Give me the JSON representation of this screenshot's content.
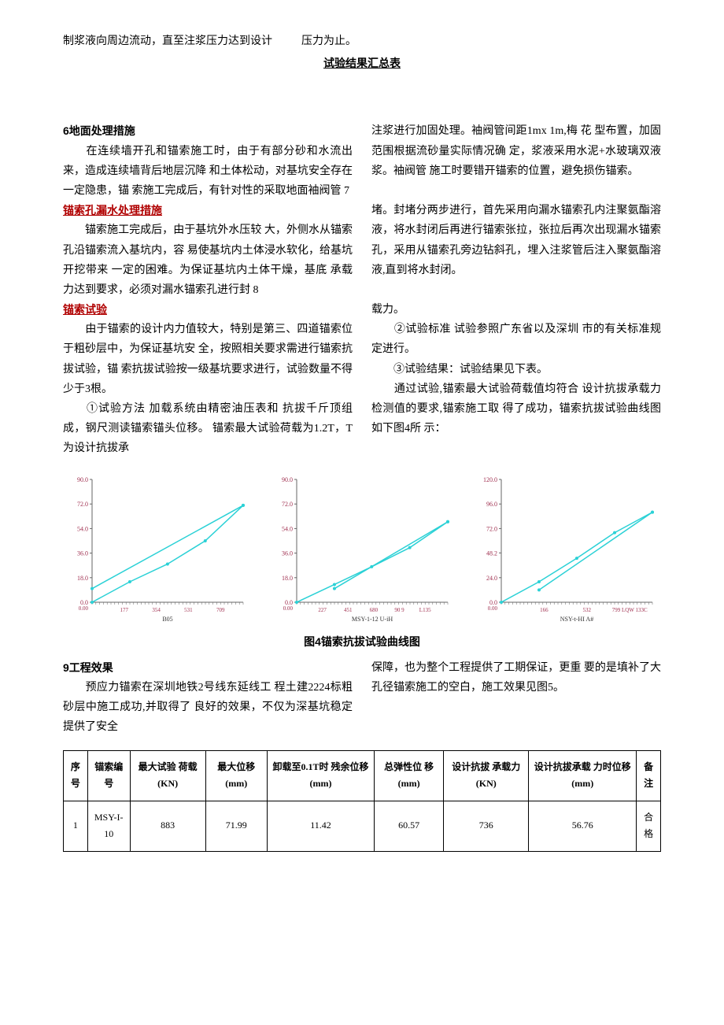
{
  "top_line_left": "制浆液向周边流动，直至注浆压力达到设计",
  "top_line_right": "压力为止。",
  "table_title": "试验结果汇总表",
  "section6_title": "6地面处理措施",
  "section6_left": "　　在连续墙开孔和锚索施工时，由于有部分砂和水流出来，造成连续墙背后地层沉降 和土体松动，对基坑安全存在一定隐患，锚 索施工完成后，有针对性的采取地面袖阀管 7",
  "section6_right": "注浆进行加固处理。袖阀管间距1mx 1m,梅 花 型布置，加固范围根据流砂量实际情况确 定，浆液采用水泥+水玻璃双液浆。袖阀管 施工时要错开锚索的位置，避免损伤锚索。",
  "section7_title": "锚索孔漏水处理措施",
  "section7_left": "　　锚索施工完成后，由于基坑外水压较 大，外侧水从锚索孔沿锚索流入基坑内，容 易使基坑内土体浸水软化，给基坑开挖带来 一定的困难。为保证基坑内土体干燥，基底 承载力达到要求，必须对漏水锚索孔进行封 8",
  "section7_right": "堵。封堵分两步进行，首先采用向漏水锚索孔内注聚氨酯溶液，将水封闭后再进行锚索张拉，张拉后再次出现漏水锚索孔，采用从锚索孔旁边钻斜孔，埋入注浆管后注入聚氨酯溶液,直到将水封闭。",
  "section8_title": "锚索试验",
  "section8_left_p1": "　　由于锚索的设计内力值较大，特别是第三、四道锚索位于粗砂层中，为保证基坑安 全，按照相关要求需进行锚索抗拔试验，锚 索抗拔试验按一级基坑要求进行，试验数量不得少于3根。",
  "section8_left_p2": "　　①试验方法 加载系统由精密油压表和 抗拔千斤顶组成，钢尺测读锚索锚头位移。 锚索最大试验荷载为1.2T，T为设计抗拔承",
  "section8_right_p1": "载力。",
  "section8_right_p2": "　　②试验标准 试验参照广东省以及深圳 市的有关标准规定进行。",
  "section8_right_p3": "　　③试验结果：试验结果见下表。",
  "section8_right_p4": "　　通过试验,锚索最大试验荷载值均符合 设计抗拔承载力检测值的要求,锚索施工取 得了成功，锚索抗拔试验曲线图如下图4所 示：",
  "charts_caption": "图4锚索抗拔试验曲线图",
  "chart1": {
    "y_ticks": [
      0,
      18.0,
      36.0,
      54.0,
      72.0,
      90.0
    ],
    "x_ticks_labels": [
      "177",
      "354",
      "531",
      "709"
    ],
    "bottom_label": "B05",
    "line_color": "#2bd1d6",
    "axis_color": "#666666",
    "tick_text_color": "#a03050",
    "data_up": [
      [
        0,
        0
      ],
      [
        177,
        15
      ],
      [
        354,
        28
      ],
      [
        531,
        45
      ],
      [
        709,
        71
      ]
    ],
    "data_down": [
      [
        709,
        71
      ],
      [
        0,
        10
      ]
    ]
  },
  "chart2": {
    "y_ticks": [
      0,
      18.0,
      36.0,
      54.0,
      72.0,
      90.0
    ],
    "x_ticks_labels": [
      "227",
      "451",
      "680",
      "90 9",
      "L135"
    ],
    "bottom_label": "MSY-1-12 U-iH",
    "line_color": "#2bd1d6",
    "axis_color": "#666666",
    "tick_text_color": "#a03050",
    "data_up": [
      [
        0,
        0
      ],
      [
        227,
        13
      ],
      [
        451,
        26
      ],
      [
        680,
        40
      ],
      [
        909,
        59
      ]
    ],
    "data_down": [
      [
        909,
        59
      ],
      [
        227,
        10
      ]
    ]
  },
  "chart3": {
    "y_ticks": [
      0,
      24.0,
      48.2,
      72.0,
      96.0,
      120.0
    ],
    "x_ticks_labels": [
      "166",
      "532",
      "799 LQW 133C"
    ],
    "bottom_label": "NSY-t-HI A#",
    "line_color": "#2bd1d6",
    "axis_color": "#666666",
    "tick_text_color": "#a03050",
    "data_up": [
      [
        0,
        0
      ],
      [
        266,
        20
      ],
      [
        532,
        43
      ],
      [
        799,
        68
      ],
      [
        1065,
        88
      ]
    ],
    "data_down": [
      [
        1065,
        88
      ],
      [
        266,
        12
      ]
    ]
  },
  "section9_title": "9工程效果",
  "section9_left": "　　预应力锚索在深圳地铁2号线东延线工 程土建2224标粗砂层中施工成功,并取得了 良好的效果，不仅为深基坑稳定提供了安全",
  "section9_right": "保障，也为整个工程提供了工期保证，更重 要的是填补了大孔径锚索施工的空白，施工效果见图5。",
  "table": {
    "headers": [
      "序号",
      "锚索编号",
      "最大试验 荷载(KN)",
      "最大位移 (mm)",
      "卸载至0.1T时 残余位移(mm)",
      "总弹性位 移(mm)",
      "设计抗拔 承载力 (KN)",
      "设计抗拔承载 力时位移(mm)",
      "备注"
    ],
    "row": [
      "1",
      "MSY-I-10",
      "883",
      "71.99",
      "11.42",
      "60.57",
      "736",
      "56.76",
      "合格"
    ]
  }
}
